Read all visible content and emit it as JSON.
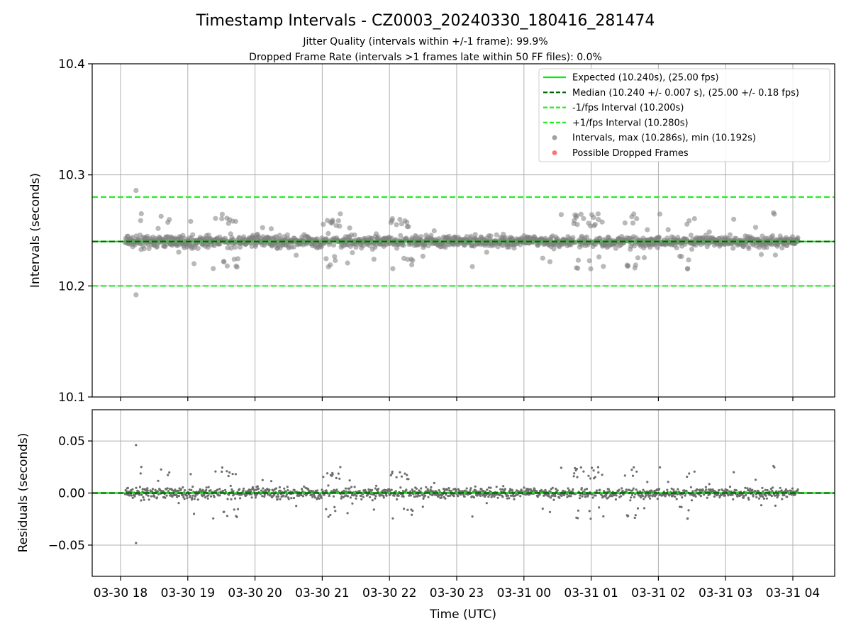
{
  "title": "Timestamp Intervals - CZ0003_20240330_180416_281474",
  "subtitle_1": "Jitter Quality (intervals within +/-1 frame): 99.9%",
  "subtitle_2": "Dropped Frame Rate (intervals >1 frames late within 50 FF files): 0.0%",
  "colors": {
    "expected": "#00ee00",
    "median": "#006400",
    "interval_lines": "#22ee22",
    "points": "#808080",
    "dropped": "#ff4444",
    "grid": "#b0b0b0"
  },
  "chart_data": [
    {
      "type": "scatter",
      "ylabel": "Intervals (seconds)",
      "ylim": [
        10.1,
        10.4
      ],
      "yticks": [
        "10.1",
        "10.2",
        "10.3",
        "10.4"
      ],
      "grid": true,
      "legend_position": "top-right",
      "reference_lines": [
        {
          "name": "Expected (10.240s), (25.00 fps)",
          "y": 10.24,
          "style": "solid"
        },
        {
          "name": "Median (10.240 +/- 0.007 s), (25.00 +/- 0.18 fps)",
          "y": 10.24,
          "style": "dashed"
        },
        {
          "name": "-1/fps Interval (10.200s)",
          "y": 10.2,
          "style": "dashed"
        },
        {
          "name": "+1/fps Interval (10.280s)",
          "y": 10.28,
          "style": "dashed"
        }
      ],
      "series": [
        {
          "name": "Intervals, max (10.286s), min (10.192s)",
          "max": 10.286,
          "min": 10.192,
          "typical_spread": 0.004,
          "outlier_band": 0.02
        },
        {
          "name": "Possible Dropped Frames",
          "count": 0
        }
      ],
      "x_range_utc": [
        "2024-03-30 18:04",
        "2024-03-31 04:05"
      ]
    },
    {
      "type": "scatter",
      "ylabel": "Residuals (seconds)",
      "xlabel": "Time (UTC)",
      "ylim": [
        -0.08,
        0.08
      ],
      "yticks": [
        "−0.05",
        "0.00",
        "0.05"
      ],
      "ytick_values": [
        -0.05,
        0.0,
        0.05
      ],
      "grid": true,
      "reference_lines": [
        {
          "y": 0.0,
          "style": "solid"
        },
        {
          "y": 0.0,
          "style": "dashed"
        }
      ],
      "series": [
        {
          "name": "Residuals",
          "max": 0.046,
          "min": -0.048
        }
      ],
      "x_range_utc": [
        "2024-03-30 18:04",
        "2024-03-31 04:05"
      ],
      "xticks": [
        "03-30 18",
        "03-30 19",
        "03-30 20",
        "03-30 21",
        "03-30 22",
        "03-30 23",
        "03-31 00",
        "03-31 01",
        "03-31 02",
        "03-31 03",
        "03-31 04"
      ]
    }
  ]
}
